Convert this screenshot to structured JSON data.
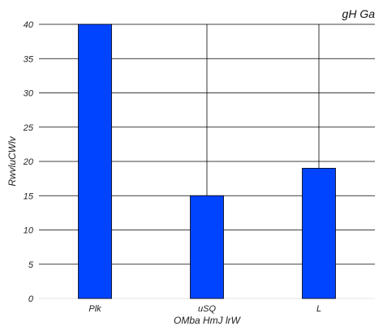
{
  "chart_data": {
    "type": "bar",
    "title": "gH  Ga",
    "xlabel": "OMba HmJ lrW",
    "ylabel": "RwvluCWlv",
    "categories": [
      "Plk",
      "uSQ",
      "L"
    ],
    "values": [
      40,
      15,
      19
    ],
    "ylim": [
      0,
      40
    ],
    "yticks": [
      0,
      5,
      10,
      15,
      20,
      25,
      30,
      35,
      40
    ],
    "grid": true,
    "bar_color": "#0044ff",
    "bar_edge_color": "#000000",
    "grid_color": "#000000"
  }
}
